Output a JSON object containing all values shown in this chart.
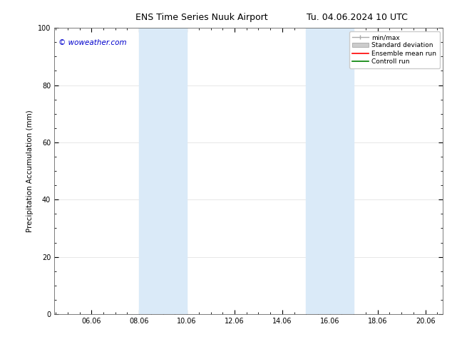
{
  "title_left": "ENS Time Series Nuuk Airport",
  "title_right": "Tu. 04.06.2024 10 UTC",
  "ylabel": "Precipitation Accumulation (mm)",
  "xlabel": "",
  "xlim_start": 4.5,
  "xlim_end": 20.8,
  "ylim": [
    0,
    100
  ],
  "xtick_positions": [
    6.06,
    8.06,
    10.06,
    12.06,
    14.06,
    16.06,
    18.06,
    20.06
  ],
  "xtick_labels": [
    "06.06",
    "08.06",
    "10.06",
    "12.06",
    "14.06",
    "16.06",
    "18.06",
    "20.06"
  ],
  "ytick_positions": [
    0,
    20,
    40,
    60,
    80,
    100
  ],
  "background_color": "#ffffff",
  "shaded_bands": [
    {
      "x_start": 8.06,
      "x_end": 10.06,
      "color": "#daeaf8",
      "alpha": 1.0
    },
    {
      "x_start": 15.06,
      "x_end": 17.06,
      "color": "#daeaf8",
      "alpha": 1.0
    }
  ],
  "legend_entries": [
    {
      "label": "min/max",
      "color": "#aaaaaa",
      "type": "errorbar"
    },
    {
      "label": "Standard deviation",
      "color": "#cccccc",
      "type": "bar"
    },
    {
      "label": "Ensemble mean run",
      "color": "#ff0000",
      "type": "line"
    },
    {
      "label": "Controll run",
      "color": "#008000",
      "type": "line"
    }
  ],
  "watermark_text": "© woweather.com",
  "watermark_color": "#0000cc",
  "title_fontsize": 9,
  "axis_fontsize": 7.5,
  "tick_fontsize": 7,
  "legend_fontsize": 6.5,
  "watermark_fontsize": 7.5
}
